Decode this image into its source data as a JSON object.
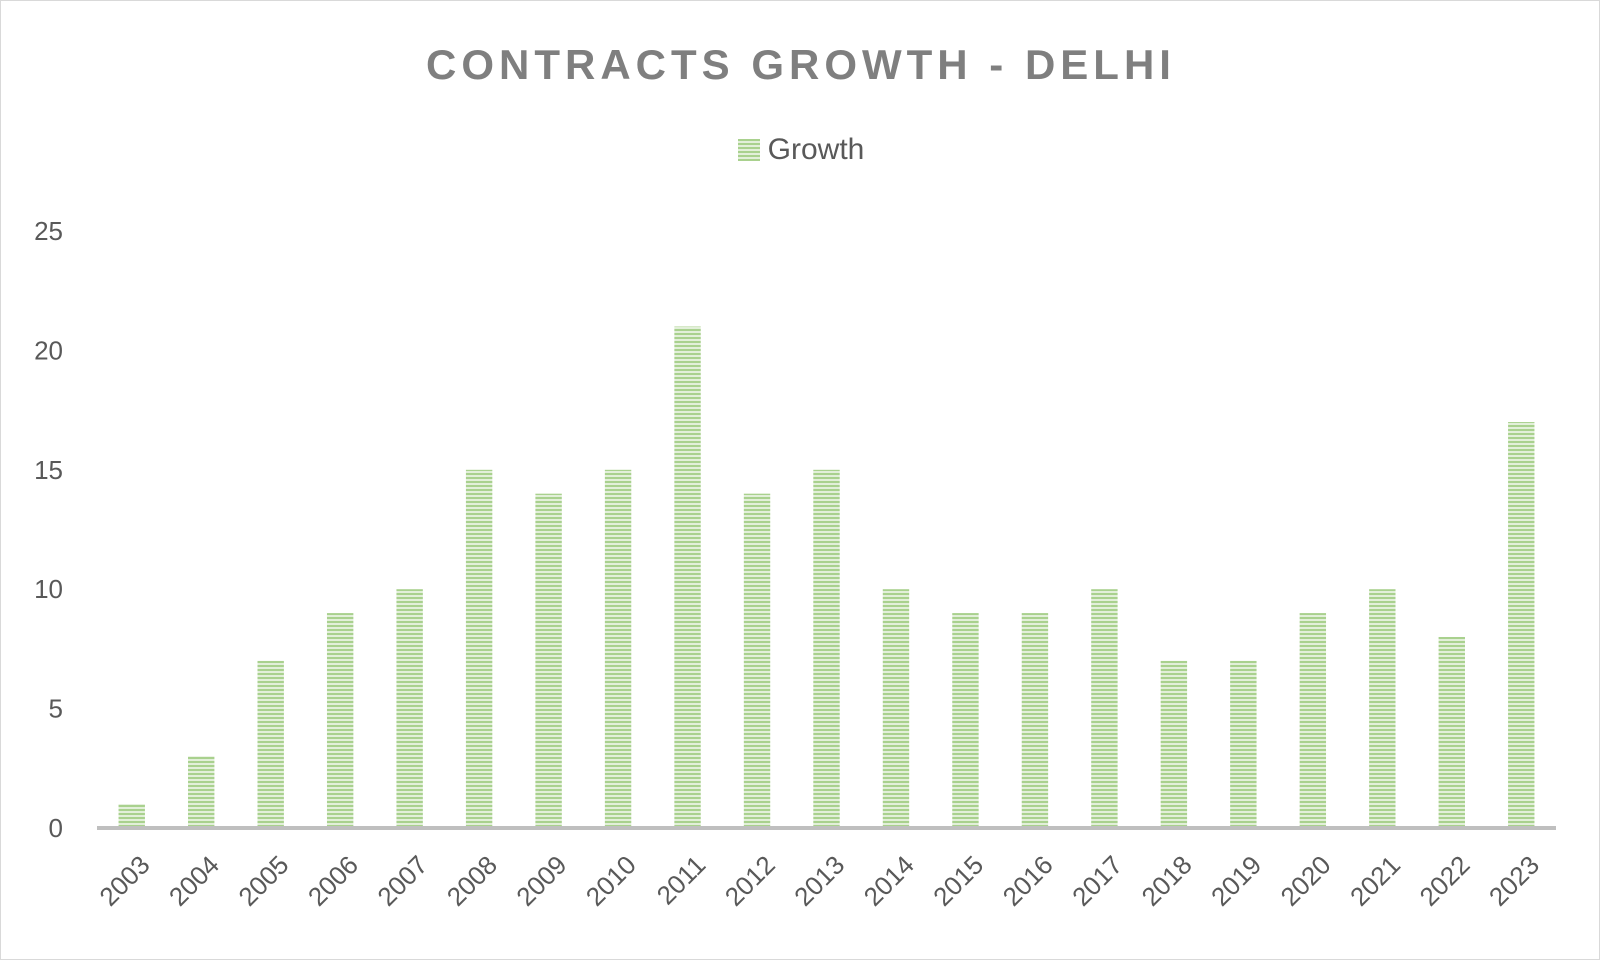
{
  "chart_data": {
    "type": "bar",
    "title": "CONTRACTS GROWTH - DELHI",
    "xlabel": "",
    "ylabel": "",
    "legend_position": "top",
    "grid": false,
    "ylim": [
      0,
      25
    ],
    "yticks": [
      0,
      5,
      10,
      15,
      20,
      25
    ],
    "categories": [
      "2003",
      "2004",
      "2005",
      "2006",
      "2007",
      "2008",
      "2009",
      "2010",
      "2011",
      "2012",
      "2013",
      "2014",
      "2015",
      "2016",
      "2017",
      "2018",
      "2019",
      "2020",
      "2021",
      "2022",
      "2023"
    ],
    "series": [
      {
        "name": "Growth",
        "color": "#a9d18e",
        "values": [
          1,
          3,
          7,
          9,
          10,
          15,
          14,
          15,
          21,
          14,
          15,
          10,
          9,
          9,
          10,
          7,
          7,
          9,
          10,
          8,
          17
        ]
      }
    ]
  }
}
